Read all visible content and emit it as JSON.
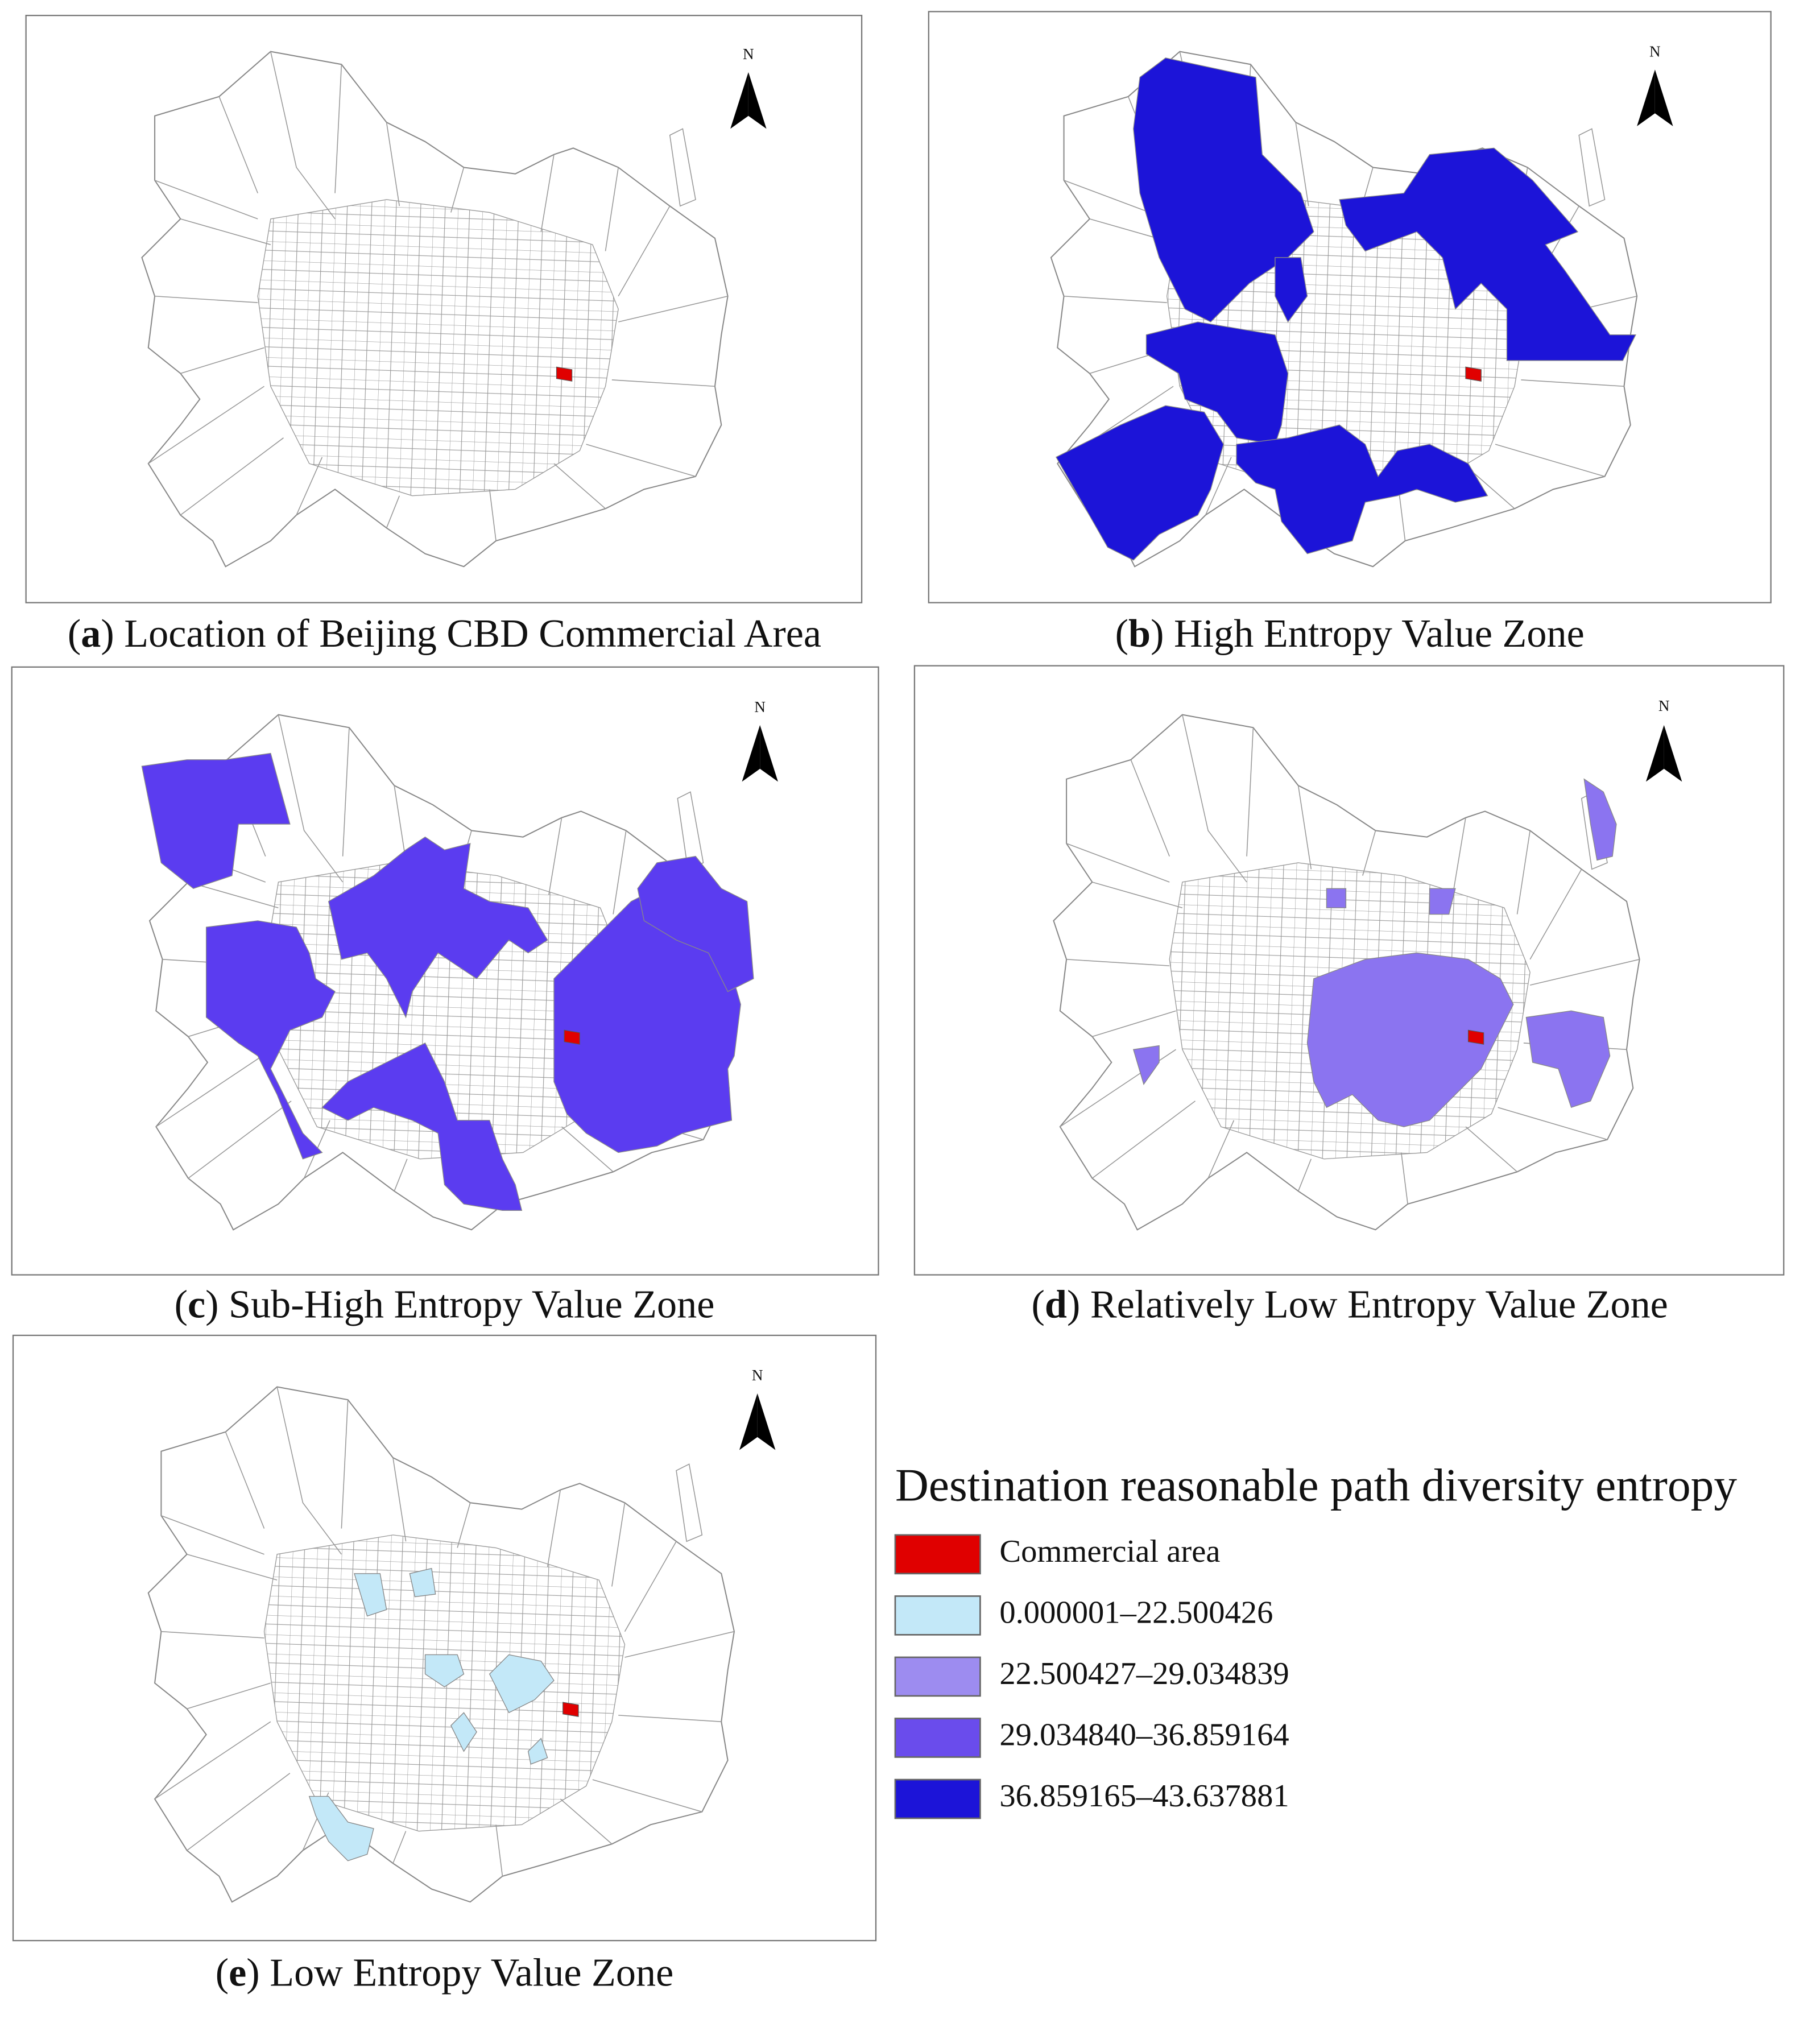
{
  "panels": [
    {
      "label": "a",
      "caption": "(a) Location of Beijing CBD Commercial Area"
    },
    {
      "label": "b",
      "caption": "(b) High Entropy Value Zone"
    },
    {
      "label": "c",
      "caption": "(c) Sub-High Entropy Value Zone"
    },
    {
      "label": "d",
      "caption": "(d) Relatively Low Entropy Value Zone"
    },
    {
      "label": "e",
      "caption": "(e) Low Entropy Value Zone"
    }
  ],
  "north_label": "N",
  "legend": {
    "title": "Destination reasonable path diversity entropy",
    "items": [
      {
        "label": "Commercial area",
        "color": "#e00000"
      },
      {
        "label": "0.000001–22.500426",
        "color": "#c3e8f8"
      },
      {
        "label": "22.500427–29.034839",
        "color": "#9d8cf0"
      },
      {
        "label": "29.034840–36.859164",
        "color": "#6a4cec"
      },
      {
        "label": "36.859165–43.637881",
        "color": "#1c14d8"
      }
    ]
  }
}
